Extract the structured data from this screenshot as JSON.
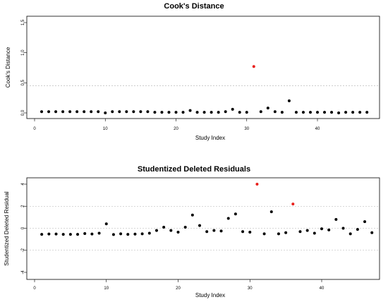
{
  "chart_data": [
    {
      "type": "scatter",
      "title": "Cook's Distance",
      "xlabel": "Study Index",
      "ylabel": "Cook's Distance",
      "xlim": [
        0,
        47
      ],
      "ylim": [
        0,
        1.5
      ],
      "xticks": [
        "0",
        "10",
        "20",
        "30",
        "40"
      ],
      "yticks": [
        "0.0",
        "0.5",
        "1.0",
        "1.5"
      ],
      "reference_lines": [
        0.45
      ],
      "grid": false,
      "colors": {
        "normal": "#000000",
        "highlight": "#e8201c",
        "refline": "#b0b0b0"
      },
      "x": [
        1,
        2,
        3,
        4,
        5,
        6,
        7,
        8,
        9,
        10,
        11,
        12,
        13,
        14,
        15,
        16,
        17,
        18,
        19,
        20,
        21,
        22,
        23,
        24,
        25,
        26,
        27,
        28,
        29,
        30,
        31,
        32,
        33,
        34,
        35,
        36,
        37,
        38,
        39,
        40,
        41,
        42,
        43,
        44,
        45,
        46,
        47
      ],
      "y": [
        0.02,
        0.02,
        0.02,
        0.02,
        0.02,
        0.02,
        0.02,
        0.02,
        0.02,
        0.0,
        0.02,
        0.02,
        0.02,
        0.02,
        0.02,
        0.02,
        0.01,
        0.01,
        0.01,
        0.01,
        0.01,
        0.04,
        0.01,
        0.01,
        0.01,
        0.01,
        0.02,
        0.06,
        0.01,
        0.01,
        0.77,
        0.02,
        0.08,
        0.02,
        0.01,
        0.2,
        0.01,
        0.01,
        0.01,
        0.01,
        0.01,
        0.01,
        0.0,
        0.01,
        0.01,
        0.01,
        0.01
      ],
      "highlighted_points": [
        31
      ]
    },
    {
      "type": "scatter",
      "title": "Studentized Deleted Residuals",
      "xlabel": "Study Index",
      "ylabel": "Studentized Deleted Residual",
      "xlim": [
        0,
        47
      ],
      "ylim": [
        -4,
        4
      ],
      "xticks": [
        "0",
        "10",
        "20",
        "30",
        "40"
      ],
      "yticks": [
        "-4",
        "-2",
        "0",
        "2",
        "4"
      ],
      "reference_lines": [
        -2,
        0,
        2
      ],
      "grid": false,
      "colors": {
        "normal": "#000000",
        "highlight": "#e8201c",
        "refline": "#b0b0b0"
      },
      "x": [
        1,
        2,
        3,
        4,
        5,
        6,
        7,
        8,
        9,
        10,
        11,
        12,
        13,
        14,
        15,
        16,
        17,
        18,
        19,
        20,
        21,
        22,
        23,
        24,
        25,
        26,
        27,
        28,
        29,
        30,
        31,
        32,
        33,
        34,
        35,
        36,
        37,
        38,
        39,
        40,
        41,
        42,
        43,
        44,
        45,
        46,
        47
      ],
      "y": [
        -0.55,
        -0.52,
        -0.52,
        -0.55,
        -0.55,
        -0.55,
        -0.48,
        -0.52,
        -0.45,
        0.4,
        -0.57,
        -0.5,
        -0.55,
        -0.53,
        -0.5,
        -0.45,
        -0.2,
        0.1,
        -0.2,
        -0.35,
        0.1,
        1.2,
        0.25,
        -0.3,
        -0.2,
        -0.25,
        0.9,
        1.3,
        -0.3,
        -0.35,
        4.0,
        -0.5,
        1.5,
        -0.5,
        -0.4,
        2.2,
        -0.3,
        -0.2,
        -0.45,
        -0.05,
        -0.15,
        0.8,
        0.0,
        -0.5,
        -0.1,
        0.6,
        -0.4
      ],
      "highlighted_points": [
        31,
        36
      ]
    }
  ]
}
